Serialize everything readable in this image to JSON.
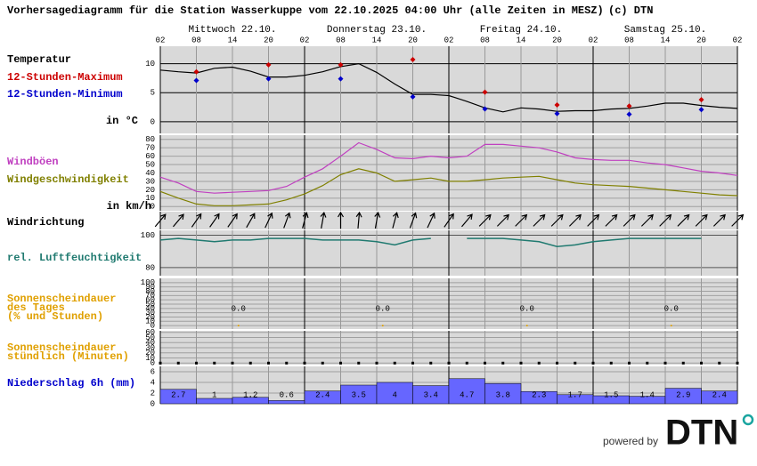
{
  "title": "Vorhersagediagramm für die Station Wasserkuppe vom 22.10.2025 04:00 Uhr (alle Zeiten in MESZ)",
  "copyright": "(c) DTN",
  "days": [
    "Mittwoch 22.10.",
    "Donnerstag 23.10.",
    "Freitag 24.10.",
    "Samstag 25.10."
  ],
  "hours": [
    "02",
    "08",
    "14",
    "20",
    "02",
    "08",
    "14",
    "20",
    "02",
    "08",
    "14",
    "20",
    "02",
    "08",
    "14",
    "20",
    "02"
  ],
  "temperature": {
    "name": "Temperatur",
    "unit": "in °C",
    "color": "#000000",
    "ylim": [
      -2,
      13
    ],
    "yticks": [
      0,
      5,
      10
    ],
    "values": [
      8.9,
      8.6,
      8.4,
      9.2,
      9.4,
      8.7,
      7.7,
      7.7,
      8.0,
      8.6,
      9.5,
      10.0,
      8.5,
      6.5,
      4.7,
      4.7,
      4.5,
      3.5,
      2.4,
      1.7,
      2.4,
      2.2,
      1.8,
      1.9,
      1.9,
      2.2,
      2.3,
      2.7,
      3.2,
      3.2,
      2.8,
      2.5,
      2.3
    ],
    "max": {
      "name": "12-Stunden-Maximum",
      "color": "#cc0000",
      "values": [
        8.6,
        9.8,
        9.8,
        10.7,
        5.1,
        2.9,
        2.7,
        3.8
      ]
    },
    "min": {
      "name": "12-Stunden-Minimum",
      "color": "#0000cc",
      "values": [
        7.1,
        7.4,
        7.4,
        4.3,
        2.2,
        1.4,
        1.3,
        2.1
      ]
    }
  },
  "wind": {
    "unit": "in km/h",
    "ylim": [
      -5,
      85
    ],
    "yticks": [
      0,
      10,
      20,
      30,
      40,
      50,
      60,
      70,
      80
    ],
    "series": [
      {
        "name": "Windböen",
        "color": "#c040c0",
        "values": [
          35,
          28,
          18,
          16,
          17,
          18,
          19,
          24,
          35,
          45,
          60,
          76,
          68,
          58,
          57,
          60,
          58,
          60,
          74,
          74,
          72,
          70,
          65,
          58,
          56,
          55,
          55,
          52,
          50,
          46,
          42,
          40,
          37
        ]
      },
      {
        "name": "Windgeschwindigkeit",
        "color": "#808000",
        "values": [
          18,
          10,
          3,
          1,
          1,
          2,
          3,
          8,
          15,
          25,
          38,
          45,
          40,
          30,
          32,
          34,
          30,
          30,
          32,
          34,
          35,
          36,
          32,
          28,
          26,
          25,
          24,
          22,
          20,
          18,
          16,
          14,
          13
        ]
      }
    ]
  },
  "wind_direction": {
    "name": "Windrichtung",
    "values": [
      220,
      220,
      215,
      215,
      215,
      210,
      205,
      200,
      195,
      190,
      180,
      185,
      190,
      195,
      200,
      205,
      215,
      220,
      225,
      225,
      225,
      225,
      225,
      225,
      225,
      225,
      225,
      225,
      225,
      225,
      225,
      225,
      225
    ]
  },
  "humidity": {
    "name": "rel. Luftfeuchtigkeit",
    "color": "#207a70",
    "ylim": [
      75,
      103
    ],
    "yticks": [
      80,
      100
    ],
    "values": [
      97,
      98,
      97,
      96,
      97,
      97,
      98,
      98,
      98,
      97,
      97,
      97,
      96,
      94,
      97,
      98,
      null,
      98,
      98,
      98,
      97,
      96,
      93,
      94,
      96,
      97,
      98,
      98,
      98,
      98,
      98,
      null,
      null
    ]
  },
  "sunshine_day": {
    "name_lines": [
      "Sonnenscheindauer",
      "des Tages",
      "(% und Stunden)"
    ],
    "color": "#e0a000",
    "ylim": [
      -8,
      110
    ],
    "yticks": [
      0,
      10,
      20,
      30,
      40,
      50,
      60,
      70,
      80,
      90,
      100
    ],
    "values": [
      0,
      0,
      0,
      0
    ],
    "value_labels": [
      "0.0",
      "0.0",
      "0.0",
      "0.0"
    ]
  },
  "sunshine_hourly": {
    "name_lines": [
      "Sonnenscheindauer",
      "stündlich (Minuten)"
    ],
    "color": "#e0a000",
    "ylim": [
      -3,
      63
    ],
    "yticks": [
      0,
      10,
      20,
      30,
      40,
      50,
      60
    ],
    "values": [
      0,
      0,
      0,
      0,
      0,
      0,
      0,
      0,
      0,
      0,
      0,
      0,
      0,
      0,
      0,
      0,
      0,
      0,
      0,
      0,
      0,
      0,
      0,
      0,
      0,
      0,
      0,
      0,
      0,
      0,
      0,
      0,
      0
    ]
  },
  "precipitation": {
    "name": "Niederschlag 6h (mm)",
    "color": "#0000cc",
    "bar_color": "#6666ff",
    "ylim": [
      0,
      7
    ],
    "yticks": [
      0,
      2,
      4,
      6
    ],
    "values": [
      2.7,
      1,
      1.2,
      0.6,
      2.4,
      3.5,
      4,
      3.4,
      4.7,
      3.8,
      2.3,
      1.7,
      1.5,
      1.4,
      2.9,
      2.4
    ]
  },
  "powered_by": "powered by",
  "logo": "DTN"
}
